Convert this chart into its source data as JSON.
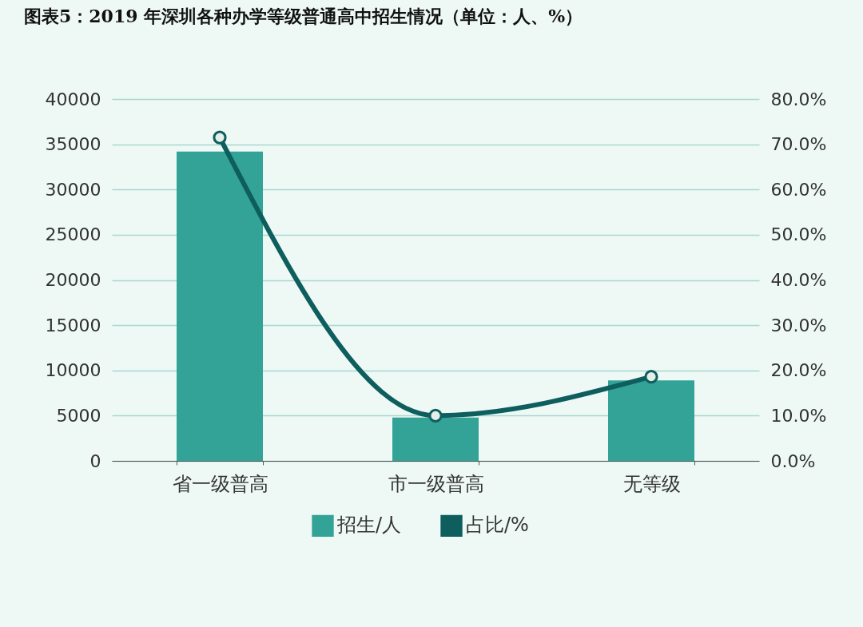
{
  "chart_data": {
    "type": "bar",
    "title": "图表5：2019 年深圳各种办学等级普通高中招生情况（单位：人、%）",
    "categories": [
      "省一级普高",
      "市一级普高",
      "无等级"
    ],
    "series": [
      {
        "name": "招生/人",
        "color": "#33a398",
        "values": [
          34200,
          4800,
          8900
        ]
      },
      {
        "name": "占比/%",
        "type": "line",
        "axis": "y2",
        "color": "#0e5e5e",
        "values": [
          71.5,
          10.0,
          18.6
        ]
      }
    ],
    "ylim": [
      0,
      40000
    ],
    "yticks": [
      0,
      5000,
      10000,
      15000,
      20000,
      25000,
      30000,
      35000,
      40000
    ],
    "y2lim": [
      0,
      80
    ],
    "y2ticks": [
      {
        "value": 0,
        "label": "0.0%"
      },
      {
        "value": 10,
        "label": "10.0%"
      },
      {
        "value": 20,
        "label": "20.0%"
      },
      {
        "value": 30,
        "label": "30.0%"
      },
      {
        "value": 40,
        "label": "40.0%"
      },
      {
        "value": 50,
        "label": "50.0%"
      },
      {
        "value": 60,
        "label": "60.0%"
      },
      {
        "value": 70,
        "label": "70.0%"
      },
      {
        "value": 80,
        "label": "80.0%"
      }
    ],
    "grid": "y",
    "legend": "bottom",
    "marker": "circle",
    "line_style": "solid"
  }
}
